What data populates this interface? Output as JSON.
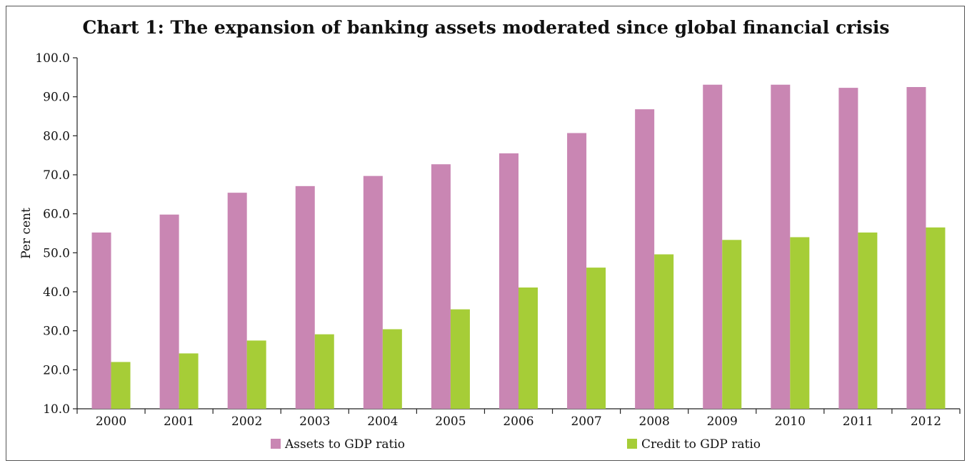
{
  "chart_data": {
    "type": "bar",
    "title": "Chart 1: The expansion of banking assets moderated since global financial crisis",
    "xlabel": "",
    "ylabel": "Per cent",
    "ylim": [
      10,
      100
    ],
    "yticks": [
      "10.0",
      "20.0",
      "30.0",
      "40.0",
      "50.0",
      "60.0",
      "70.0",
      "80.0",
      "90.0",
      "100.0"
    ],
    "categories": [
      "2000",
      "2001",
      "2002",
      "2003",
      "2004",
      "2005",
      "2006",
      "2007",
      "2008",
      "2009",
      "2010",
      "2011",
      "2012"
    ],
    "series": [
      {
        "name": "Assets to GDP ratio",
        "color": "#c986b3",
        "values": [
          55.2,
          59.8,
          65.4,
          67.1,
          69.7,
          72.7,
          75.5,
          80.7,
          86.8,
          93.1,
          93.1,
          92.3,
          92.5
        ]
      },
      {
        "name": "Credit to GDP ratio",
        "color": "#a6cd37",
        "values": [
          22.0,
          24.2,
          27.5,
          29.1,
          30.4,
          35.5,
          41.1,
          46.2,
          49.6,
          53.3,
          54.0,
          55.2,
          56.5
        ]
      }
    ],
    "grid": false,
    "legend": "bottom"
  }
}
